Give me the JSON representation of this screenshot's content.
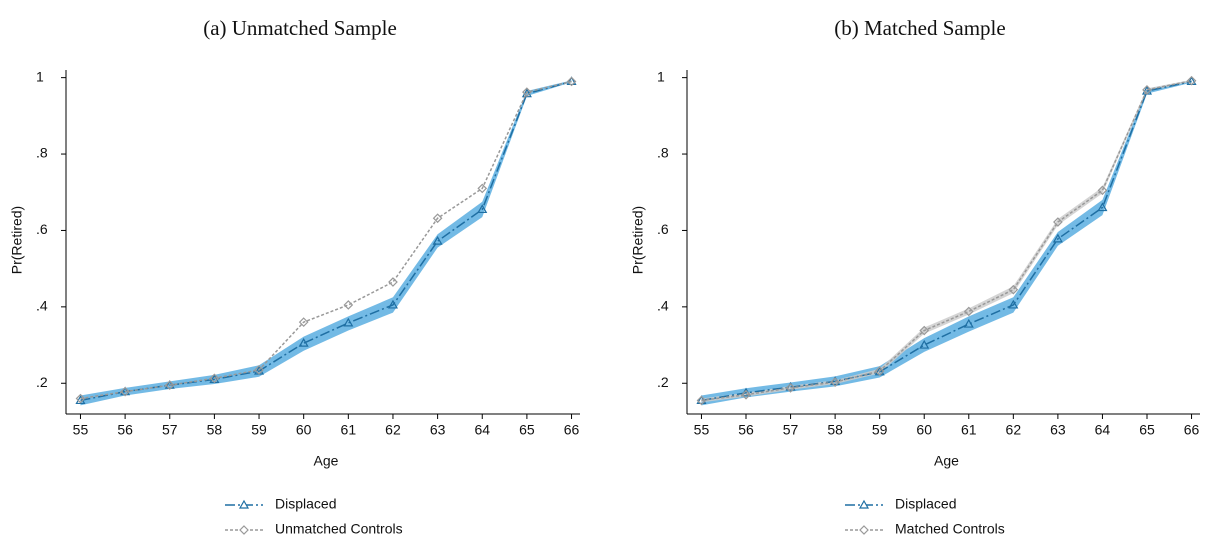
{
  "chart_data": [
    {
      "type": "line",
      "title": "(a) Unmatched Sample",
      "xlabel": "Age",
      "ylabel": "Pr(Retired)",
      "x": [
        55,
        56,
        57,
        58,
        59,
        60,
        61,
        62,
        63,
        64,
        65,
        66
      ],
      "xlim": [
        54.9,
        66.1
      ],
      "xticks": [
        55,
        56,
        57,
        58,
        59,
        60,
        61,
        62,
        63,
        64,
        65,
        66
      ],
      "ylim": [
        0.13,
        1.02
      ],
      "yticks": [
        {
          "value": 0.2,
          "label": ".2"
        },
        {
          "value": 0.4,
          "label": ".4"
        },
        {
          "value": 0.6,
          "label": ".6"
        },
        {
          "value": 0.8,
          "label": ".8"
        },
        1
      ],
      "series": [
        {
          "name": "Displaced",
          "color": "#1f6fa3",
          "band_color": "#5aaee0",
          "marker": "triangle",
          "dash": "10,3,2,3",
          "values": [
            0.155,
            0.178,
            0.195,
            0.21,
            0.232,
            0.305,
            0.358,
            0.405,
            0.572,
            0.655,
            0.958,
            0.99
          ],
          "lower": [
            0.142,
            0.168,
            0.185,
            0.198,
            0.217,
            0.285,
            0.338,
            0.385,
            0.555,
            0.635,
            0.952,
            0.988
          ],
          "upper": [
            0.168,
            0.188,
            0.205,
            0.222,
            0.247,
            0.322,
            0.375,
            0.425,
            0.59,
            0.675,
            0.965,
            0.993
          ]
        },
        {
          "name": "Unmatched Controls",
          "color": "#999999",
          "band_color": "#cccccc",
          "marker": "diamond",
          "dash": "3,2",
          "values": [
            0.16,
            0.178,
            0.195,
            0.213,
            0.235,
            0.36,
            0.405,
            0.465,
            0.632,
            0.71,
            0.962,
            0.99
          ]
        }
      ]
    },
    {
      "type": "line",
      "title": "(b) Matched Sample",
      "xlabel": "Age",
      "ylabel": "Pr(Retired)",
      "x": [
        55,
        56,
        57,
        58,
        59,
        60,
        61,
        62,
        63,
        64,
        65,
        66
      ],
      "xlim": [
        54.9,
        66.1
      ],
      "xticks": [
        55,
        56,
        57,
        58,
        59,
        60,
        61,
        62,
        63,
        64,
        65,
        66
      ],
      "ylim": [
        0.13,
        1.02
      ],
      "yticks": [
        {
          "value": 0.2,
          "label": ".2"
        },
        {
          "value": 0.4,
          "label": ".4"
        },
        {
          "value": 0.6,
          "label": ".6"
        },
        {
          "value": 0.8,
          "label": ".8"
        },
        1
      ],
      "series": [
        {
          "name": "Displaced",
          "color": "#1f6fa3",
          "band_color": "#5aaee0",
          "marker": "triangle",
          "dash": "10,3,2,3",
          "values": [
            0.155,
            0.175,
            0.19,
            0.205,
            0.23,
            0.3,
            0.355,
            0.405,
            0.578,
            0.66,
            0.965,
            0.99
          ],
          "lower": [
            0.142,
            0.163,
            0.178,
            0.192,
            0.215,
            0.282,
            0.335,
            0.385,
            0.56,
            0.64,
            0.958,
            0.987
          ],
          "upper": [
            0.168,
            0.187,
            0.202,
            0.218,
            0.245,
            0.318,
            0.375,
            0.425,
            0.596,
            0.68,
            0.971,
            0.993
          ]
        },
        {
          "name": "Matched Controls",
          "color": "#999999",
          "band_color": "#cccccc",
          "marker": "diamond",
          "dash": "3,2",
          "values": [
            0.155,
            0.17,
            0.188,
            0.203,
            0.232,
            0.338,
            0.388,
            0.445,
            0.622,
            0.705,
            0.968,
            0.992
          ],
          "lower": [
            0.15,
            0.165,
            0.183,
            0.198,
            0.226,
            0.33,
            0.38,
            0.436,
            0.614,
            0.697,
            0.964,
            0.99
          ],
          "upper": [
            0.16,
            0.175,
            0.193,
            0.208,
            0.238,
            0.346,
            0.396,
            0.454,
            0.63,
            0.713,
            0.972,
            0.994
          ]
        }
      ]
    }
  ]
}
